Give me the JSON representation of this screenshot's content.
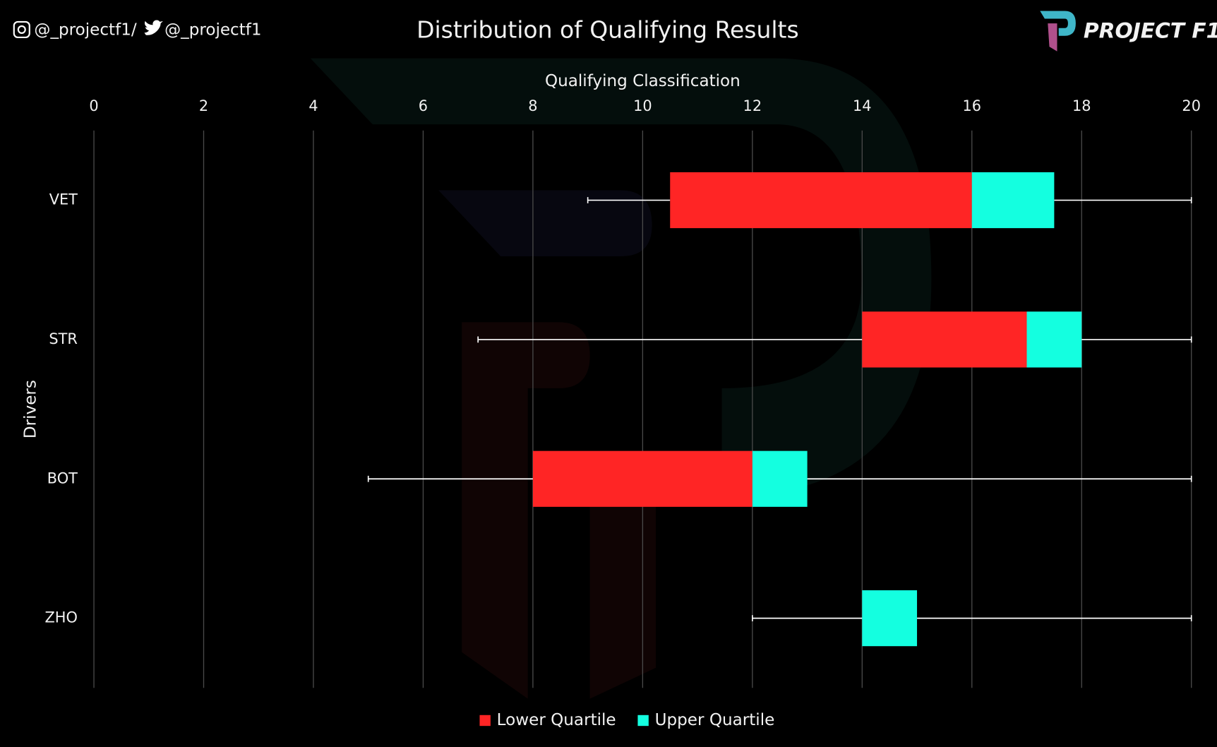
{
  "header": {
    "instagram": "@_projectf1",
    "separator": "/",
    "twitter": "@_projectf1",
    "brand": "PROJECT F1"
  },
  "chart_data": {
    "type": "box",
    "title": "Distribution of Qualifying Results",
    "xlabel": "Qualifying Classification",
    "ylabel": "Drivers",
    "categories": [
      "VET",
      "STR",
      "BOT",
      "ZHO"
    ],
    "min": [
      9,
      7,
      5,
      12
    ],
    "q1": [
      10.5,
      14,
      8,
      14
    ],
    "median": [
      16,
      17,
      12,
      14
    ],
    "q3": [
      17.5,
      18,
      13,
      15
    ],
    "max": [
      20,
      20,
      20,
      20
    ],
    "series": [
      {
        "name": "Lower Quartile",
        "color": "#ff2525"
      },
      {
        "name": "Upper Quartile",
        "color": "#14ffe0"
      }
    ],
    "whisker_color": "#ffffff",
    "xlim": [
      0,
      20
    ],
    "xticks": [
      0,
      2,
      4,
      6,
      8,
      10,
      12,
      14,
      16,
      18,
      20
    ],
    "grid": true,
    "legend": "bottom"
  }
}
